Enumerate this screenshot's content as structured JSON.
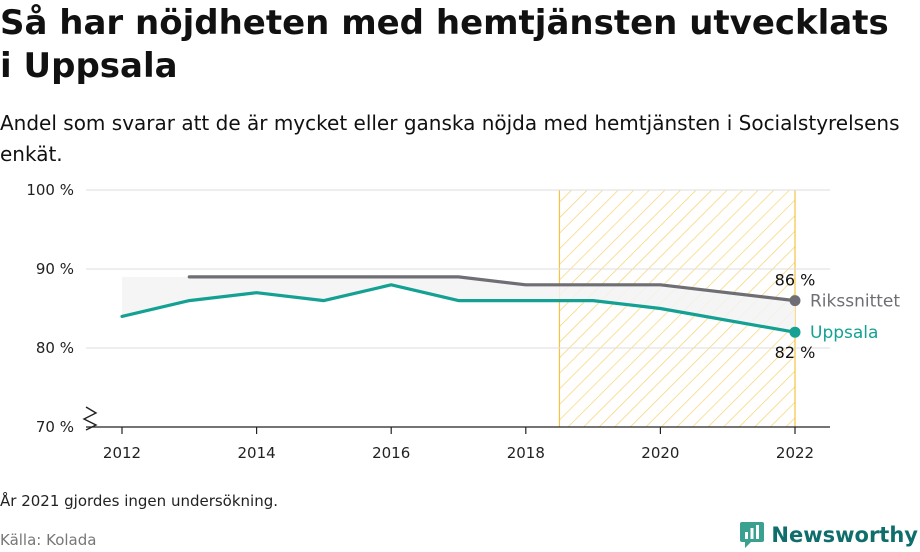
{
  "header": {
    "title": "Så har nöjdheten med hemtjänsten utvecklats i Uppsala",
    "subtitle": "Andel som svarar att de är mycket eller ganska nöjda med hemtjänsten i Socialstyrelsens enkät."
  },
  "footer": {
    "note": "År 2021 gjordes ingen undersökning.",
    "source": "Källa: Kolada",
    "brand": "Newsworthy",
    "brand_icon": "chart-chat-logo-icon"
  },
  "chart_data": {
    "type": "line",
    "ylim": [
      70,
      100
    ],
    "xlim": [
      2012,
      2022
    ],
    "y_ticks": [
      {
        "value": 70,
        "label": "70 %"
      },
      {
        "value": 80,
        "label": "80 %"
      },
      {
        "value": 90,
        "label": "90 %"
      },
      {
        "value": 100,
        "label": "100 %"
      }
    ],
    "x_ticks": [
      {
        "value": 2012,
        "label": "2012"
      },
      {
        "value": 2014,
        "label": "2014"
      },
      {
        "value": 2016,
        "label": "2016"
      },
      {
        "value": 2018,
        "label": "2018"
      },
      {
        "value": 2020,
        "label": "2020"
      },
      {
        "value": 2022,
        "label": "2022"
      }
    ],
    "grid": true,
    "y_axis_break": true,
    "highlight_band": {
      "from": 2018.5,
      "to": 2022,
      "pattern": "hatched",
      "color": "#f5c343"
    },
    "series": [
      {
        "name": "Rikssnittet",
        "color": "#6f6e74",
        "x": [
          2013,
          2014,
          2015,
          2016,
          2017,
          2018,
          2019,
          2020,
          2022
        ],
        "values": [
          89,
          89,
          89,
          89,
          89,
          88,
          88,
          88,
          86
        ],
        "end_label": "86 %"
      },
      {
        "name": "Uppsala",
        "color": "#14a193",
        "x": [
          2012,
          2013,
          2014,
          2015,
          2016,
          2017,
          2018,
          2019,
          2020,
          2022
        ],
        "values": [
          84,
          86,
          87,
          86,
          88,
          86,
          86,
          86,
          85,
          82
        ],
        "end_label": "82 %"
      }
    ],
    "gap_shading": {
      "color": "#f3f3f4"
    }
  }
}
